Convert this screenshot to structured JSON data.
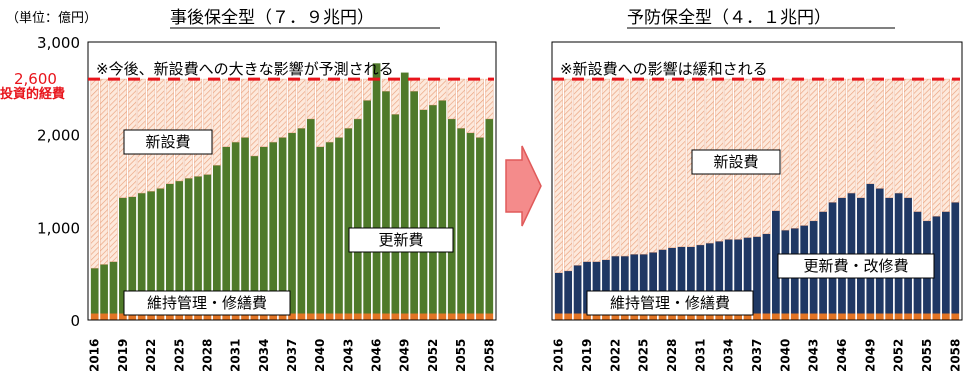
{
  "unit_label": "（単位：億円）",
  "colors": {
    "maintenance": "#e27424",
    "renewal_green": "#4f7a2a",
    "renewal_navy": "#1f3864",
    "new_fill": "#fde9dc",
    "new_hatch": "#e9a07c",
    "threshold": "#e8141b",
    "arrow_fill": "#f48b8b",
    "arrow_edge": "#e05a5a"
  },
  "chart_data": [
    {
      "type": "bar",
      "stacked": true,
      "title": "事後保全型（７．９兆円）",
      "annotation": "※今後、新設費への大きな影響が予測される",
      "segment_labels": {
        "new": "新設費",
        "renewal": "更新費",
        "maintenance": "維持管理・修繕費"
      },
      "ylim": [
        0,
        3000
      ],
      "y_ticks": [
        "0",
        "1,000",
        "2,000",
        "3,000"
      ],
      "threshold": {
        "value": 2600,
        "label": "2,600",
        "sublabel": "投資的経費"
      },
      "x_tick_labels": [
        "2016",
        "2019",
        "2022",
        "2025",
        "2028",
        "2031",
        "2034",
        "2037",
        "2040",
        "2043",
        "2046",
        "2049",
        "2052",
        "2055",
        "2058"
      ],
      "x_tick_every": 3,
      "categories": [
        "2016",
        "2017",
        "2018",
        "2019",
        "2020",
        "2021",
        "2022",
        "2023",
        "2024",
        "2025",
        "2026",
        "2027",
        "2028",
        "2029",
        "2030",
        "2031",
        "2032",
        "2033",
        "2034",
        "2035",
        "2036",
        "2037",
        "2038",
        "2039",
        "2040",
        "2041",
        "2042",
        "2043",
        "2044",
        "2045",
        "2046",
        "2047",
        "2048",
        "2049",
        "2050",
        "2051",
        "2052",
        "2053",
        "2054",
        "2055",
        "2056",
        "2057",
        "2058"
      ],
      "series": [
        {
          "name": "維持管理・修繕費",
          "key": "maintenance",
          "values": [
            70,
            70,
            70,
            70,
            70,
            70,
            70,
            70,
            70,
            70,
            70,
            70,
            70,
            70,
            70,
            70,
            70,
            70,
            70,
            70,
            70,
            70,
            70,
            70,
            70,
            70,
            70,
            70,
            70,
            70,
            70,
            70,
            70,
            70,
            70,
            70,
            70,
            70,
            70,
            70,
            70,
            70,
            70
          ]
        },
        {
          "name": "更新費",
          "key": "renewal",
          "values": [
            490,
            530,
            560,
            1250,
            1260,
            1300,
            1320,
            1350,
            1400,
            1430,
            1460,
            1480,
            1500,
            1600,
            1800,
            1850,
            1900,
            1700,
            1800,
            1850,
            1900,
            1950,
            2000,
            2100,
            1800,
            1850,
            1900,
            2000,
            2100,
            2300,
            2700,
            2400,
            2150,
            2600,
            2400,
            2200,
            2250,
            2300,
            2100,
            2000,
            1950,
            1900,
            2100
          ]
        },
        {
          "name": "新設費",
          "key": "new",
          "values": [
            2040,
            2000,
            1970,
            1280,
            1270,
            1230,
            1210,
            1180,
            1130,
            1100,
            1070,
            1050,
            1030,
            930,
            730,
            680,
            630,
            830,
            730,
            680,
            630,
            580,
            530,
            430,
            730,
            680,
            630,
            530,
            430,
            230,
            0,
            130,
            380,
            0,
            130,
            330,
            280,
            230,
            430,
            530,
            580,
            630,
            430
          ]
        }
      ]
    },
    {
      "type": "bar",
      "stacked": true,
      "title": "予防保全型（４．１兆円）",
      "annotation": "※新設費への影響は緩和される",
      "segment_labels": {
        "new": "新設費",
        "renewal": "更新費・改修費",
        "maintenance": "維持管理・修繕費"
      },
      "ylim": [
        0,
        3000
      ],
      "threshold": {
        "value": 2600
      },
      "x_tick_labels": [
        "2016",
        "2019",
        "2022",
        "2025",
        "2028",
        "2031",
        "2034",
        "2037",
        "2040",
        "2043",
        "2046",
        "2049",
        "2052",
        "2055",
        "2058"
      ],
      "x_tick_every": 3,
      "categories": [
        "2016",
        "2017",
        "2018",
        "2019",
        "2020",
        "2021",
        "2022",
        "2023",
        "2024",
        "2025",
        "2026",
        "2027",
        "2028",
        "2029",
        "2030",
        "2031",
        "2032",
        "2033",
        "2034",
        "2035",
        "2036",
        "2037",
        "2038",
        "2039",
        "2040",
        "2041",
        "2042",
        "2043",
        "2044",
        "2045",
        "2046",
        "2047",
        "2048",
        "2049",
        "2050",
        "2051",
        "2052",
        "2053",
        "2054",
        "2055",
        "2056",
        "2057",
        "2058"
      ],
      "series": [
        {
          "name": "維持管理・修繕費",
          "key": "maintenance",
          "values": [
            70,
            70,
            70,
            70,
            70,
            70,
            70,
            70,
            70,
            70,
            70,
            70,
            70,
            70,
            70,
            70,
            70,
            70,
            70,
            70,
            70,
            70,
            70,
            70,
            70,
            70,
            70,
            70,
            70,
            70,
            70,
            70,
            70,
            70,
            70,
            70,
            70,
            70,
            70,
            70,
            70,
            70,
            70
          ]
        },
        {
          "name": "更新費・改修費",
          "key": "renewal",
          "values": [
            440,
            460,
            520,
            560,
            560,
            580,
            620,
            620,
            640,
            640,
            660,
            690,
            710,
            720,
            720,
            740,
            760,
            780,
            800,
            800,
            820,
            830,
            860,
            1110,
            900,
            920,
            950,
            1000,
            1100,
            1200,
            1250,
            1300,
            1250,
            1400,
            1350,
            1250,
            1300,
            1250,
            1100,
            1000,
            1050,
            1100,
            1200
          ]
        },
        {
          "name": "新設費",
          "key": "new",
          "values": [
            2090,
            2070,
            2010,
            1970,
            1970,
            1950,
            1910,
            1910,
            1890,
            1890,
            1870,
            1840,
            1820,
            1810,
            1810,
            1790,
            1770,
            1750,
            1730,
            1730,
            1710,
            1700,
            1670,
            1420,
            1630,
            1610,
            1580,
            1530,
            1430,
            1330,
            1280,
            1230,
            1280,
            1130,
            1180,
            1280,
            1230,
            1280,
            1430,
            1530,
            1480,
            1430,
            1330
          ]
        }
      ]
    }
  ]
}
